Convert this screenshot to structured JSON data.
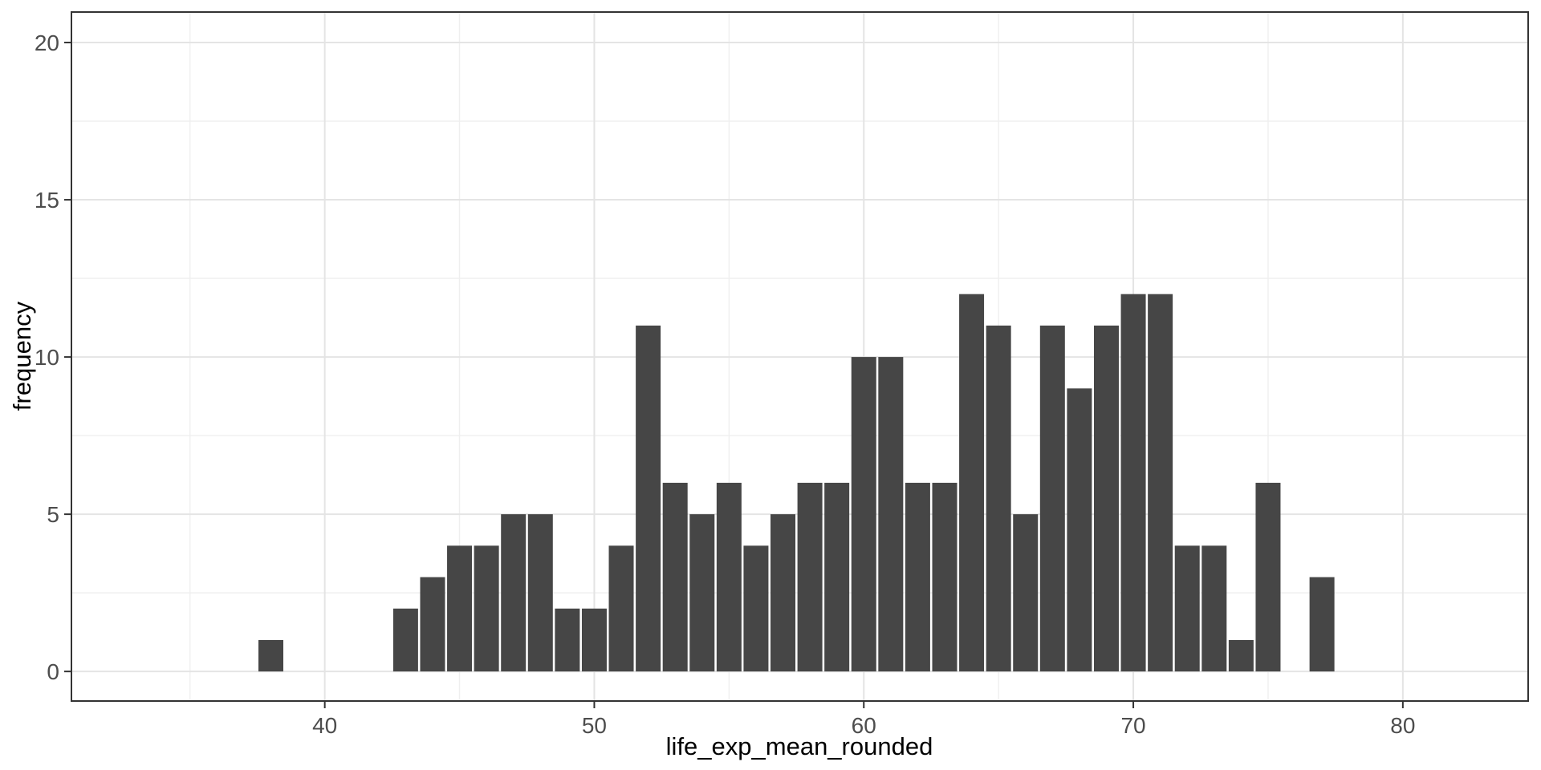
{
  "chart_data": {
    "type": "bar",
    "subtype": "histogram",
    "title": "",
    "xlabel": "life_exp_mean_rounded",
    "ylabel": "frequency",
    "x_tick_labels": [
      "40",
      "50",
      "60",
      "70",
      "80"
    ],
    "y_tick_labels": [
      "0",
      "5",
      "10",
      "15",
      "20"
    ],
    "x_ticks": [
      40,
      50,
      60,
      70,
      80
    ],
    "y_ticks": [
      0,
      5,
      10,
      15,
      20
    ],
    "x_minor_breaks": [
      35,
      45,
      55,
      65,
      75
    ],
    "y_minor_breaks": [
      2.5,
      7.5,
      12.5,
      17.5
    ],
    "xlim": [
      30.6,
      84.65
    ],
    "ylim": [
      -0.94,
      20.97
    ],
    "binwidth": 1,
    "grid": true,
    "legend": "none",
    "bars": [
      {
        "x": 38,
        "count": 1
      },
      {
        "x": 43,
        "count": 2
      },
      {
        "x": 44,
        "count": 3
      },
      {
        "x": 45,
        "count": 4
      },
      {
        "x": 46,
        "count": 4
      },
      {
        "x": 47,
        "count": 5
      },
      {
        "x": 48,
        "count": 5
      },
      {
        "x": 49,
        "count": 2
      },
      {
        "x": 50,
        "count": 2
      },
      {
        "x": 51,
        "count": 4
      },
      {
        "x": 52,
        "count": 11
      },
      {
        "x": 53,
        "count": 6
      },
      {
        "x": 54,
        "count": 5
      },
      {
        "x": 55,
        "count": 6
      },
      {
        "x": 56,
        "count": 4
      },
      {
        "x": 57,
        "count": 5
      },
      {
        "x": 58,
        "count": 6
      },
      {
        "x": 59,
        "count": 6
      },
      {
        "x": 60,
        "count": 10
      },
      {
        "x": 61,
        "count": 10
      },
      {
        "x": 62,
        "count": 6
      },
      {
        "x": 63,
        "count": 6
      },
      {
        "x": 64,
        "count": 12
      },
      {
        "x": 65,
        "count": 11
      },
      {
        "x": 66,
        "count": 5
      },
      {
        "x": 67,
        "count": 11
      },
      {
        "x": 68,
        "count": 9
      },
      {
        "x": 69,
        "count": 11
      },
      {
        "x": 70,
        "count": 12
      },
      {
        "x": 71,
        "count": 12
      },
      {
        "x": 72,
        "count": 4
      },
      {
        "x": 73,
        "count": 4
      },
      {
        "x": 74,
        "count": 1
      },
      {
        "x": 75,
        "count": 6
      },
      {
        "x": 77,
        "count": 3
      }
    ],
    "colors": {
      "bar_fill": "#464646",
      "panel_background": "#ffffff",
      "figure_background": "#ffffff",
      "grid_major": "#e4e4e4",
      "grid_minor": "#efefef",
      "panel_border": "#333333",
      "tick_mark": "#333333",
      "tick_label": "#4d4d4d",
      "axis_title": "#000000"
    }
  }
}
